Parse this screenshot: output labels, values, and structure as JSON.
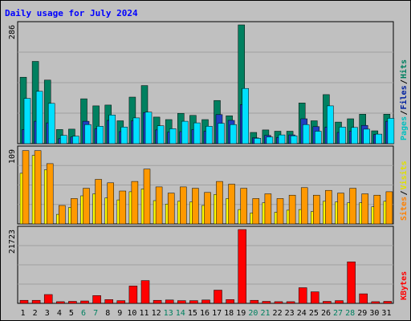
{
  "chart_data": [
    {
      "type": "bar",
      "title": "Daily usage for July 2024",
      "ylim": [
        0,
        286
      ],
      "ytick_max_label": "286",
      "legend_right": [
        {
          "label": "Pages",
          "color": "#00c0c0"
        },
        {
          "label": "Files",
          "color": "#0020a0"
        },
        {
          "label": "Hits",
          "color": "#008060"
        }
      ],
      "legend_sep": "/",
      "categories": [
        "1",
        "2",
        "3",
        "4",
        "5",
        "6",
        "7",
        "8",
        "9",
        "10",
        "11",
        "12",
        "13",
        "14",
        "15",
        "16",
        "17",
        "18",
        "19",
        "20",
        "21",
        "22",
        "23",
        "24",
        "25",
        "26",
        "27",
        "28",
        "29",
        "30",
        "31"
      ],
      "weekend_days": [
        "6",
        "7",
        "13",
        "14",
        "20",
        "21",
        "27",
        "28"
      ],
      "series": [
        {
          "name": "Hits",
          "color": "#008060",
          "values": [
            160,
            198,
            153,
            34,
            35,
            108,
            91,
            93,
            55,
            112,
            140,
            64,
            58,
            73,
            68,
            58,
            104,
            67,
            286,
            27,
            33,
            30,
            30,
            98,
            55,
            118,
            52,
            60,
            71,
            31,
            71
          ]
        },
        {
          "name": "Files",
          "color": "#2040c0",
          "values": [
            34,
            54,
            50,
            12,
            16,
            54,
            36,
            56,
            29,
            55,
            75,
            33,
            28,
            29,
            34,
            30,
            70,
            56,
            94,
            14,
            20,
            15,
            21,
            60,
            41,
            40,
            27,
            30,
            44,
            22,
            54
          ]
        },
        {
          "name": "Pages",
          "color": "#00e0ff",
          "values": [
            109,
            126,
            97,
            20,
            18,
            46,
            42,
            69,
            40,
            62,
            76,
            43,
            36,
            54,
            50,
            42,
            49,
            46,
            133,
            13,
            16,
            21,
            19,
            46,
            30,
            91,
            40,
            39,
            35,
            23,
            61
          ]
        }
      ]
    },
    {
      "type": "bar",
      "ylim": [
        0,
        109
      ],
      "ytick_max_label": "109",
      "legend_right": [
        {
          "label": "Sites",
          "color": "#ff8000"
        },
        {
          "label": "Visits",
          "color": "#e0e000"
        }
      ],
      "legend_sep": "/",
      "series": [
        {
          "name": "Visits",
          "color": "#ffff00",
          "values": [
            74,
            100,
            79,
            14,
            24,
            41,
            44,
            38,
            35,
            47,
            51,
            34,
            29,
            33,
            32,
            27,
            43,
            37,
            21,
            16,
            31,
            17,
            20,
            21,
            18,
            33,
            32,
            31,
            31,
            25,
            33
          ]
        },
        {
          "name": "Sites",
          "color": "#ff9900",
          "values": [
            107,
            107,
            88,
            27,
            37,
            52,
            65,
            60,
            48,
            62,
            80,
            54,
            45,
            54,
            52,
            46,
            62,
            58,
            52,
            37,
            44,
            37,
            42,
            53,
            42,
            49,
            45,
            52,
            44,
            42,
            47
          ]
        }
      ]
    },
    {
      "type": "bar",
      "ylim": [
        0,
        21723
      ],
      "ytick_max_label": "21723",
      "legend_right": [
        {
          "label": "KBytes",
          "color": "#ff0000"
        }
      ],
      "series": [
        {
          "name": "KBytes",
          "color": "#ff0000",
          "values": [
            900,
            900,
            2600,
            500,
            600,
            700,
            2300,
            1100,
            800,
            5100,
            6700,
            900,
            1000,
            800,
            800,
            1000,
            3900,
            1100,
            21723,
            900,
            600,
            500,
            500,
            4600,
            3400,
            600,
            800,
            12200,
            2800,
            500,
            600
          ]
        }
      ]
    }
  ],
  "colors": {
    "background": "#c0c0c0",
    "title": "#0000ff",
    "axis_label": "#000000",
    "weekend_label": "#008060"
  }
}
